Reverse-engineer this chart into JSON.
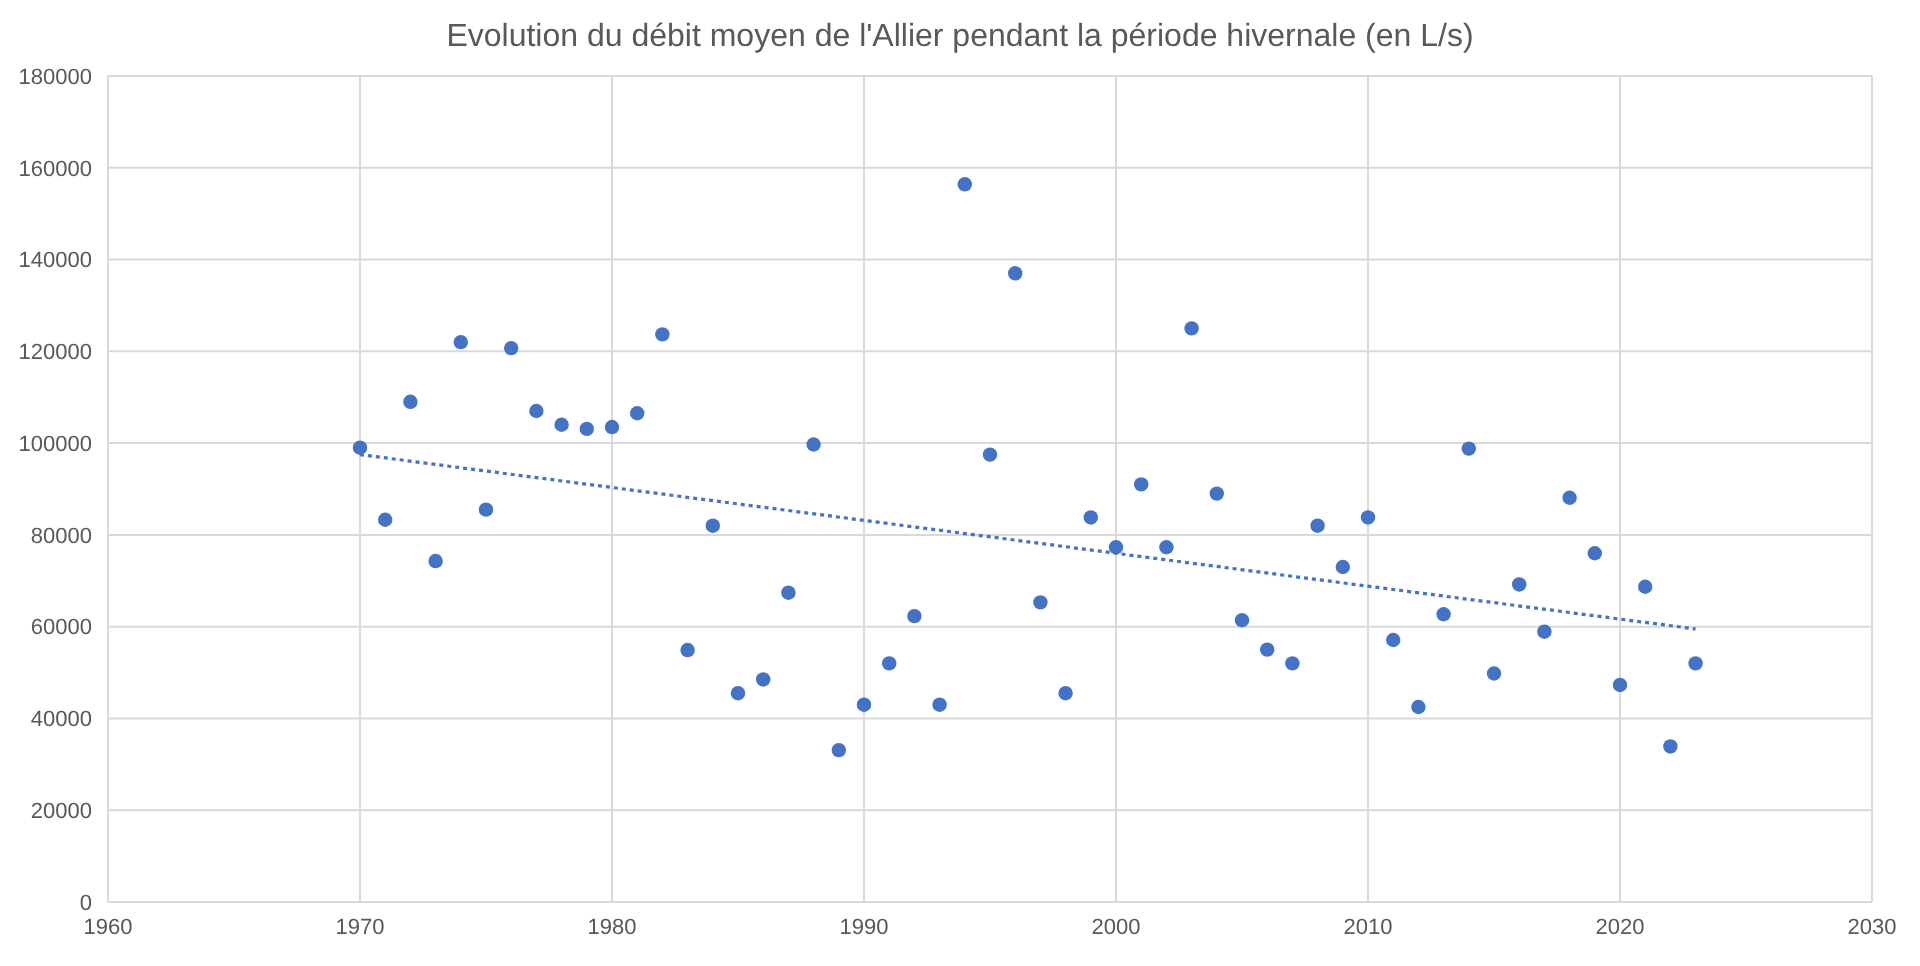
{
  "chart_data": {
    "type": "scatter",
    "title": "Evolution du débit moyen de l'Allier pendant la période hivernale (en L/s)",
    "x": [
      1970,
      1971,
      1972,
      1973,
      1974,
      1975,
      1976,
      1977,
      1978,
      1979,
      1980,
      1981,
      1982,
      1983,
      1984,
      1985,
      1986,
      1987,
      1988,
      1989,
      1990,
      1991,
      1992,
      1993,
      1994,
      1995,
      1996,
      1997,
      1998,
      1999,
      2000,
      2001,
      2002,
      2003,
      2004,
      2005,
      2006,
      2007,
      2008,
      2009,
      2010,
      2011,
      2012,
      2013,
      2014,
      2015,
      2016,
      2017,
      2018,
      2019,
      2020,
      2021,
      2022,
      2023
    ],
    "series": [
      {
        "color": "#4472c4",
        "marker": "circle",
        "values": [
          99000,
          83300,
          109000,
          74300,
          122000,
          85500,
          120700,
          107000,
          104000,
          103100,
          103500,
          106500,
          123700,
          54900,
          82000,
          45500,
          48500,
          67400,
          99700,
          33100,
          43000,
          52000,
          62300,
          43000,
          156400,
          97500,
          137000,
          65300,
          45500,
          83800,
          77300,
          91000,
          77300,
          125000,
          89000,
          61400,
          55000,
          52000,
          82000,
          73000,
          83800,
          57100,
          42500,
          62700,
          98800,
          49800,
          69200,
          58900,
          88100,
          76000,
          47300,
          68700,
          33900,
          52000
        ]
      },
      {
        "type": "line",
        "color": "#4472c4",
        "line_style": "dotted",
        "marker": "none",
        "x": [
          1970,
          2023
        ],
        "values": [
          97500,
          59500
        ]
      }
    ],
    "xlim": [
      1960,
      2030
    ],
    "xticks": [
      1960,
      1970,
      1980,
      1990,
      2000,
      2010,
      2020,
      2030
    ],
    "ylim": [
      0,
      180000
    ],
    "yticks": [
      0,
      20000,
      40000,
      60000,
      80000,
      100000,
      120000,
      140000,
      160000,
      180000
    ],
    "grid": true
  }
}
